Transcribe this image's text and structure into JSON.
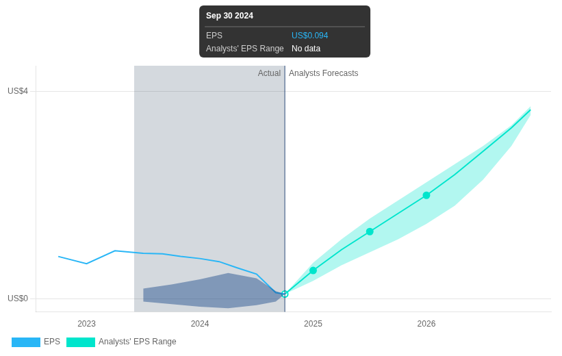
{
  "chart_data": {
    "type": "line",
    "xlim": [
      2022.55,
      2027.1
    ],
    "xticks": [
      2023,
      2024,
      2025,
      2026
    ],
    "ylim": [
      -0.25,
      4.5
    ],
    "yticks": [
      {
        "value": 0,
        "label": "US$0"
      },
      {
        "value": 4,
        "label": "US$4"
      }
    ],
    "grid": "y",
    "legend": "bottom",
    "series": [
      {
        "name": "EPS",
        "color": "#29b6f6",
        "x": [
          2022.75,
          2023.0,
          2023.25,
          2023.5,
          2023.67,
          2023.83,
          2024.0,
          2024.17,
          2024.33,
          2024.5,
          2024.67,
          2024.75
        ],
        "values": [
          0.82,
          0.68,
          0.93,
          0.88,
          0.87,
          0.82,
          0.78,
          0.72,
          0.6,
          0.48,
          0.12,
          0.094
        ]
      },
      {
        "name": "Analysts' EPS Range",
        "color": "#00e5cc",
        "x": [
          2024.75,
          2025.0,
          2025.25,
          2025.5,
          2025.75,
          2026.0,
          2026.25,
          2026.5,
          2026.75,
          2026.92
        ],
        "values": [
          0.094,
          0.55,
          0.95,
          1.3,
          1.65,
          2.0,
          2.4,
          2.85,
          3.3,
          3.65
        ],
        "upper": [
          0.094,
          0.7,
          1.15,
          1.55,
          1.9,
          2.25,
          2.6,
          2.95,
          3.35,
          3.72
        ],
        "lower": [
          0.094,
          0.35,
          0.65,
          0.9,
          1.15,
          1.45,
          1.8,
          2.3,
          2.95,
          3.55
        ]
      }
    ],
    "bands": [
      {
        "color": "#1a4a8a",
        "x": [
          2023.5,
          2023.75,
          2024.0,
          2024.25,
          2024.5,
          2024.67,
          2024.75
        ],
        "upper": [
          0.2,
          0.28,
          0.38,
          0.5,
          0.4,
          0.15,
          0.094
        ],
        "lower": [
          -0.05,
          -0.1,
          -0.15,
          -0.18,
          -0.12,
          -0.05,
          0.094
        ]
      }
    ],
    "points": [
      {
        "color": "#00e5cc",
        "marker": "open_circle",
        "x": [
          2024.75
        ],
        "values": [
          0.094
        ]
      },
      {
        "color": "#00e5cc",
        "marker": "circle",
        "x": [
          2025.0,
          2025.5,
          2026.0
        ],
        "values": [
          0.55,
          1.3,
          2.0
        ]
      }
    ],
    "divider": {
      "x": 2024.75,
      "color": "#2a4a7a",
      "shade_start": 2023.42,
      "shade_color": "#112a4a",
      "left_label": "Actual",
      "right_label": "Analysts Forecasts"
    },
    "tooltip": {
      "title": "Sep 30 2024",
      "rows": [
        {
          "label": "EPS",
          "value": "US$0.094",
          "color": "#29b6f6"
        },
        {
          "label": "Analysts' EPS Range",
          "value": "No data"
        }
      ]
    }
  }
}
